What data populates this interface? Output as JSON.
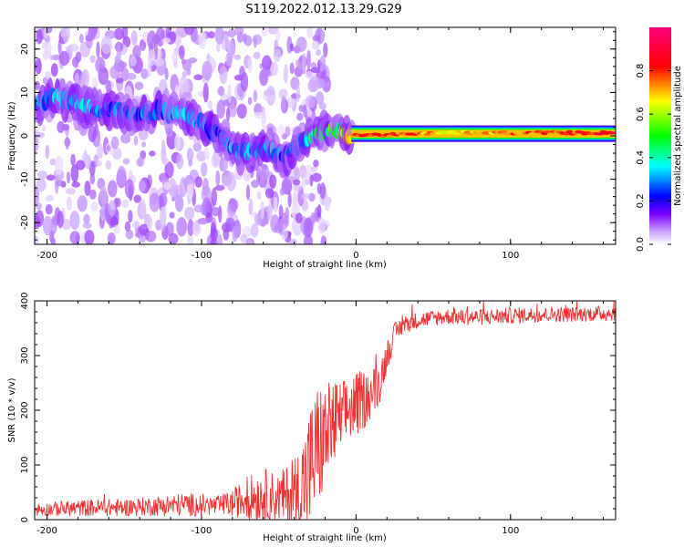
{
  "title": "S119.2022.012.13.29.G29",
  "chart_data": [
    {
      "type": "heatmap",
      "xlabel": "Height of straight line (km)",
      "ylabel": "Frequency (Hz)",
      "xlim": [
        -208,
        168
      ],
      "ylim": [
        -25,
        25
      ],
      "xticks": [
        -200,
        -100,
        0,
        100
      ],
      "xtick_labels": [
        "-200",
        "-100",
        "0",
        "100"
      ],
      "yticks": [
        -20,
        -10,
        0,
        10,
        20
      ],
      "ytick_labels": [
        "-20",
        "-10",
        "0",
        "10",
        "20"
      ],
      "colorbar": {
        "label": "Normalized spectral amplitude",
        "range": [
          0,
          1
        ],
        "ticks": [
          0.0,
          0.2,
          0.4,
          0.6,
          0.8
        ],
        "tick_labels": [
          "0.0",
          "0.2",
          "0.4",
          "0.6",
          "0.8"
        ],
        "colors": [
          "#ffffff",
          "#7d00ff",
          "#0000ff",
          "#00ffff",
          "#00ff00",
          "#ffff00",
          "#ff0000",
          "#ff0080"
        ]
      },
      "ridge": {
        "x": [
          -205,
          -195,
          -185,
          -175,
          -165,
          -155,
          -145,
          -135,
          -125,
          -115,
          -105,
          -95,
          -85,
          -75,
          -65,
          -55,
          -48,
          -40,
          -30,
          -20,
          -12,
          -5,
          0,
          20,
          60,
          100,
          140,
          168
        ],
        "y": [
          7,
          9,
          8,
          7,
          6,
          6,
          5,
          5,
          6,
          5,
          4,
          2,
          -1,
          -4,
          -4,
          -3,
          -5,
          -3,
          0,
          1,
          1,
          0,
          0,
          0,
          1,
          1,
          1,
          1
        ],
        "amplitude": [
          0.3,
          0.35,
          0.35,
          0.35,
          0.3,
          0.3,
          0.28,
          0.3,
          0.3,
          0.35,
          0.35,
          0.3,
          0.3,
          0.35,
          0.35,
          0.4,
          0.3,
          0.3,
          0.4,
          0.5,
          0.6,
          0.7,
          0.85,
          0.85,
          0.7,
          0.8,
          0.85,
          0.9
        ]
      }
    },
    {
      "type": "line",
      "xlabel": "Height of straight line (km)",
      "ylabel": "SNR (10 * v/v)",
      "xlim": [
        -208,
        168
      ],
      "ylim": [
        0,
        400
      ],
      "xticks": [
        -200,
        -100,
        0,
        100
      ],
      "xtick_labels": [
        "-200",
        "-100",
        "0",
        "100"
      ],
      "yticks": [
        0,
        100,
        200,
        300,
        400
      ],
      "ytick_labels": [
        "0",
        "100",
        "200",
        "300",
        "400"
      ],
      "series": [
        {
          "color": "#ee3333",
          "x": [
            -208,
            -190,
            -170,
            -150,
            -130,
            -110,
            -90,
            -80,
            -70,
            -60,
            -50,
            -40,
            -35,
            -30,
            -25,
            -20,
            -15,
            -10,
            -5,
            0,
            5,
            10,
            15,
            20,
            25,
            30,
            35,
            40,
            50,
            60,
            70,
            80,
            100,
            120,
            140,
            168
          ],
          "y": [
            18,
            20,
            22,
            22,
            25,
            28,
            25,
            30,
            40,
            45,
            40,
            45,
            60,
            90,
            130,
            150,
            170,
            185,
            200,
            210,
            220,
            230,
            250,
            300,
            340,
            355,
            360,
            365,
            368,
            372,
            370,
            370,
            373,
            375,
            375,
            378
          ],
          "noise": [
            12,
            14,
            16,
            16,
            18,
            22,
            18,
            25,
            40,
            50,
            45,
            70,
            90,
            120,
            120,
            100,
            90,
            70,
            60,
            60,
            55,
            45,
            40,
            30,
            20,
            18,
            16,
            15,
            15,
            15,
            15,
            15,
            15,
            14,
            14,
            14
          ]
        }
      ]
    }
  ]
}
